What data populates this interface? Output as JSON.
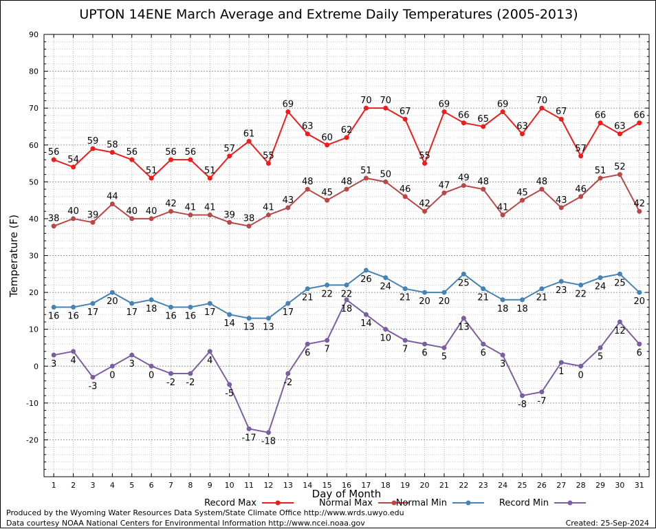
{
  "chart_data": {
    "type": "line",
    "title": "UPTON 14ENE March Average and Extreme Daily Temperatures (2005-2013)",
    "xlabel": "Day of Month",
    "ylabel": "Temperature (F)",
    "ylim": [
      -30,
      90
    ],
    "xlim": [
      0.5,
      31.5
    ],
    "yticks": [
      -20,
      -10,
      0,
      10,
      20,
      30,
      40,
      50,
      60,
      70,
      80,
      90
    ],
    "xticks": [
      1,
      2,
      3,
      4,
      5,
      6,
      7,
      8,
      9,
      10,
      11,
      12,
      13,
      14,
      15,
      16,
      17,
      18,
      19,
      20,
      21,
      22,
      23,
      24,
      25,
      26,
      27,
      28,
      29,
      30,
      31
    ],
    "grid": true,
    "legend_position": "bottom",
    "x": [
      1,
      2,
      3,
      4,
      5,
      6,
      7,
      8,
      9,
      10,
      11,
      12,
      13,
      14,
      15,
      16,
      17,
      18,
      19,
      20,
      21,
      22,
      23,
      24,
      25,
      26,
      27,
      28,
      29,
      30,
      31
    ],
    "series": [
      {
        "name": "Record Max",
        "color": "#ee1c1c",
        "label_position": "above",
        "values": [
          56,
          54,
          59,
          58,
          56,
          51,
          56,
          56,
          51,
          57,
          61,
          55,
          69,
          63,
          60,
          62,
          70,
          70,
          67,
          55,
          69,
          66,
          65,
          69,
          63,
          70,
          67,
          57,
          66,
          63,
          66
        ]
      },
      {
        "name": "Normal Max",
        "color": "#b84848",
        "label_position": "above",
        "values": [
          38,
          40,
          39,
          44,
          40,
          40,
          42,
          41,
          41,
          39,
          38,
          41,
          43,
          48,
          45,
          48,
          51,
          50,
          46,
          42,
          47,
          49,
          48,
          41,
          45,
          48,
          43,
          46,
          51,
          52,
          42
        ]
      },
      {
        "name": "Normal Min",
        "color": "#4682b4",
        "label_position": "below",
        "values": [
          16,
          16,
          17,
          20,
          17,
          18,
          16,
          16,
          17,
          14,
          13,
          13,
          17,
          21,
          22,
          22,
          26,
          24,
          21,
          20,
          20,
          25,
          21,
          18,
          18,
          21,
          23,
          22,
          24,
          25,
          20
        ]
      },
      {
        "name": "Record Min",
        "color": "#7b5ea1",
        "label_position": "below",
        "values": [
          3,
          4,
          -3,
          0,
          3,
          0,
          -2,
          -2,
          4,
          -5,
          -17,
          -18,
          -2,
          6,
          7,
          18,
          14,
          10,
          7,
          6,
          5,
          13,
          6,
          3,
          -8,
          -7,
          1,
          0,
          5,
          12,
          6
        ]
      }
    ]
  },
  "footer": {
    "produced_by": "Produced by the Wyoming Water Resources Data System/State Climate Office http://www.wrds.uwyo.edu",
    "data_courtesy": "Data courtesy NOAA National Centers for Environmental Information http://www.ncei.noaa.gov",
    "created": "Created:  25-Sep-2024"
  }
}
